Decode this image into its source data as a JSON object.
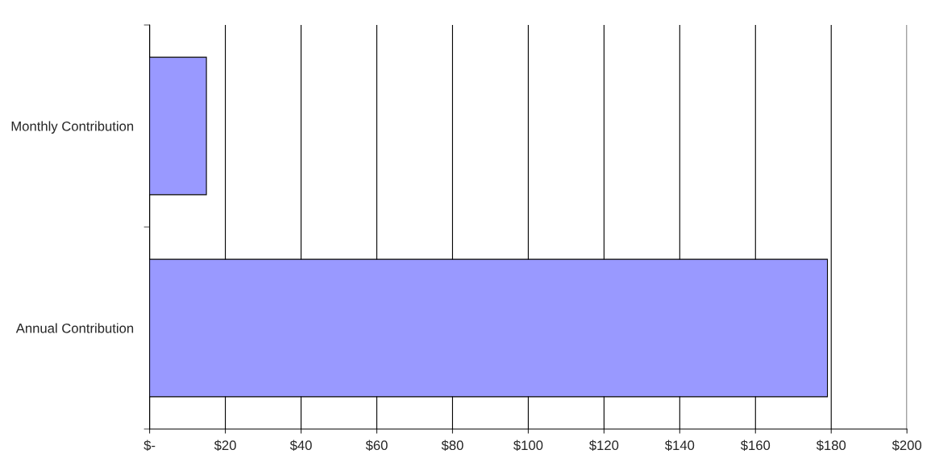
{
  "chart_data": {
    "type": "bar",
    "orientation": "horizontal",
    "categories": [
      "Monthly Contribution",
      "Annual Contribution"
    ],
    "series": [
      {
        "color": "#9999ff",
        "values": [
          15,
          179
        ]
      }
    ],
    "xlim": [
      0,
      200
    ],
    "xticks": [
      {
        "value": 0,
        "label": "$-"
      },
      {
        "value": 20,
        "label": "$20"
      },
      {
        "value": 40,
        "label": "$40"
      },
      {
        "value": 60,
        "label": "$60"
      },
      {
        "value": 80,
        "label": "$80"
      },
      {
        "value": 100,
        "label": "$100"
      },
      {
        "value": 120,
        "label": "$120"
      },
      {
        "value": 140,
        "label": "$140"
      },
      {
        "value": 160,
        "label": "$160"
      },
      {
        "value": 180,
        "label": "$180"
      },
      {
        "value": 200,
        "label": "$200"
      }
    ],
    "grid": "x"
  }
}
